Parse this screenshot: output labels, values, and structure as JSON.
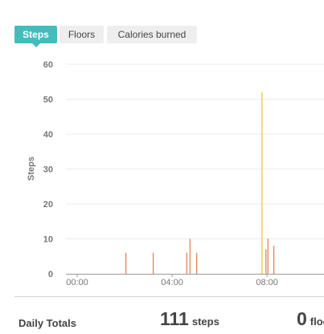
{
  "tabs": [
    {
      "label": "Steps",
      "active": true
    },
    {
      "label": "Floors",
      "active": false
    },
    {
      "label": "Calories burned",
      "active": false
    }
  ],
  "colors": {
    "accent": "#45bcbc",
    "bar": "#e07b5a",
    "bar_peak": "#f0c419",
    "grid": "#ebebeb",
    "axis": "#999999"
  },
  "chart_data": {
    "type": "bar",
    "title": "",
    "xlabel": "",
    "ylabel": "Steps",
    "ylim": [
      0,
      60
    ],
    "yticks": [
      0,
      10,
      20,
      30,
      40,
      50,
      60
    ],
    "xlim_hours": [
      0,
      10.4
    ],
    "xticks": [
      {
        "label": "00:00",
        "hour": 0
      },
      {
        "label": "04:00",
        "hour": 4
      },
      {
        "label": "08:00",
        "hour": 8
      }
    ],
    "grid": true,
    "series": [
      {
        "values": [
          {
            "time": "02:03",
            "steps": 6
          },
          {
            "time": "03:12",
            "steps": 6
          },
          {
            "time": "04:37",
            "steps": 6
          },
          {
            "time": "04:45",
            "steps": 10
          },
          {
            "time": "05:02",
            "steps": 6
          },
          {
            "time": "07:47",
            "steps": 52,
            "highlight": true
          },
          {
            "time": "07:57",
            "steps": 7
          },
          {
            "time": "08:02",
            "steps": 10
          },
          {
            "time": "08:17",
            "steps": 8
          }
        ]
      }
    ]
  },
  "totals": {
    "title": "Daily Totals",
    "steps_value": "111",
    "steps_unit": "steps",
    "floors_value": "0",
    "floors_unit": "floors"
  }
}
